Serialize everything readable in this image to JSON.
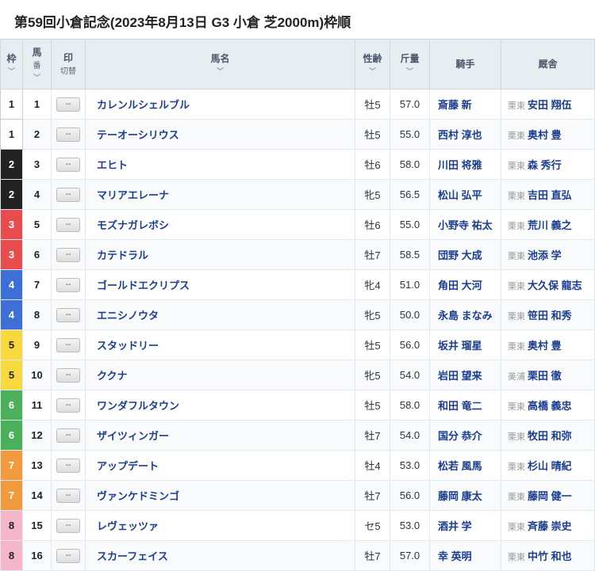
{
  "title": "第59回小倉記念(2023年8月13日 G3 小倉 芝2000m)枠順",
  "columns": {
    "waku": {
      "label": "枠",
      "arrow": true
    },
    "uma": {
      "label": "馬",
      "sub": "番",
      "arrow": true
    },
    "mark": {
      "label": "印",
      "sub": "切替"
    },
    "horse": {
      "label": "馬名",
      "arrow": true
    },
    "sexage": {
      "label": "性齢",
      "arrow": true
    },
    "weight": {
      "label": "斤量",
      "arrow": true
    },
    "jockey": {
      "label": "騎手"
    },
    "trainer": {
      "label": "厩舎"
    }
  },
  "mark_button": "--",
  "waku_colors": {
    "1": "w1",
    "2": "w2",
    "3": "w3",
    "4": "w4",
    "5": "w5",
    "6": "w6",
    "7": "w7",
    "8": "w8"
  },
  "rows": [
    {
      "waku": "1",
      "uma": "1",
      "horse": "カレンルシェルブル",
      "sexage": "牡5",
      "weight": "57.0",
      "jockey": "斎藤 新",
      "trainer_loc": "栗東",
      "trainer": "安田 翔伍"
    },
    {
      "waku": "1",
      "uma": "2",
      "horse": "テーオーシリウス",
      "sexage": "牡5",
      "weight": "55.0",
      "jockey": "西村 淳也",
      "trainer_loc": "栗東",
      "trainer": "奥村 豊"
    },
    {
      "waku": "2",
      "uma": "3",
      "horse": "エヒト",
      "sexage": "牡6",
      "weight": "58.0",
      "jockey": "川田 将雅",
      "trainer_loc": "栗東",
      "trainer": "森 秀行"
    },
    {
      "waku": "2",
      "uma": "4",
      "horse": "マリアエレーナ",
      "sexage": "牝5",
      "weight": "56.5",
      "jockey": "松山 弘平",
      "trainer_loc": "栗東",
      "trainer": "吉田 直弘"
    },
    {
      "waku": "3",
      "uma": "5",
      "horse": "モズナガレボシ",
      "sexage": "牡6",
      "weight": "55.0",
      "jockey": "小野寺 祐太",
      "trainer_loc": "栗東",
      "trainer": "荒川 義之"
    },
    {
      "waku": "3",
      "uma": "6",
      "horse": "カテドラル",
      "sexage": "牡7",
      "weight": "58.5",
      "jockey": "団野 大成",
      "trainer_loc": "栗東",
      "trainer": "池添 学"
    },
    {
      "waku": "4",
      "uma": "7",
      "horse": "ゴールドエクリプス",
      "sexage": "牝4",
      "weight": "51.0",
      "jockey": "角田 大河",
      "trainer_loc": "栗東",
      "trainer": "大久保 龍志"
    },
    {
      "waku": "4",
      "uma": "8",
      "horse": "エニシノウタ",
      "sexage": "牝5",
      "weight": "50.0",
      "jockey": "永島 まなみ",
      "trainer_loc": "栗東",
      "trainer": "笹田 和秀"
    },
    {
      "waku": "5",
      "uma": "9",
      "horse": "スタッドリー",
      "sexage": "牡5",
      "weight": "56.0",
      "jockey": "坂井 瑠星",
      "trainer_loc": "栗東",
      "trainer": "奥村 豊"
    },
    {
      "waku": "5",
      "uma": "10",
      "horse": "ククナ",
      "sexage": "牝5",
      "weight": "54.0",
      "jockey": "岩田 望来",
      "trainer_loc": "美浦",
      "trainer": "栗田 徹"
    },
    {
      "waku": "6",
      "uma": "11",
      "horse": "ワンダフルタウン",
      "sexage": "牡5",
      "weight": "58.0",
      "jockey": "和田 竜二",
      "trainer_loc": "栗東",
      "trainer": "高橋 義忠"
    },
    {
      "waku": "6",
      "uma": "12",
      "horse": "ザイツィンガー",
      "sexage": "牡7",
      "weight": "54.0",
      "jockey": "国分 恭介",
      "trainer_loc": "栗東",
      "trainer": "牧田 和弥"
    },
    {
      "waku": "7",
      "uma": "13",
      "horse": "アップデート",
      "sexage": "牡4",
      "weight": "53.0",
      "jockey": "松若 風馬",
      "trainer_loc": "栗東",
      "trainer": "杉山 晴紀"
    },
    {
      "waku": "7",
      "uma": "14",
      "horse": "ヴァンケドミンゴ",
      "sexage": "牡7",
      "weight": "56.0",
      "jockey": "藤岡 康太",
      "trainer_loc": "栗東",
      "trainer": "藤岡 健一"
    },
    {
      "waku": "8",
      "uma": "15",
      "horse": "レヴェッツァ",
      "sexage": "セ5",
      "weight": "53.0",
      "jockey": "酒井 学",
      "trainer_loc": "栗東",
      "trainer": "斉藤 崇史"
    },
    {
      "waku": "8",
      "uma": "16",
      "horse": "スカーフェイス",
      "sexage": "牡7",
      "weight": "57.0",
      "jockey": "幸 英明",
      "trainer_loc": "栗東",
      "trainer": "中竹 和也"
    }
  ]
}
